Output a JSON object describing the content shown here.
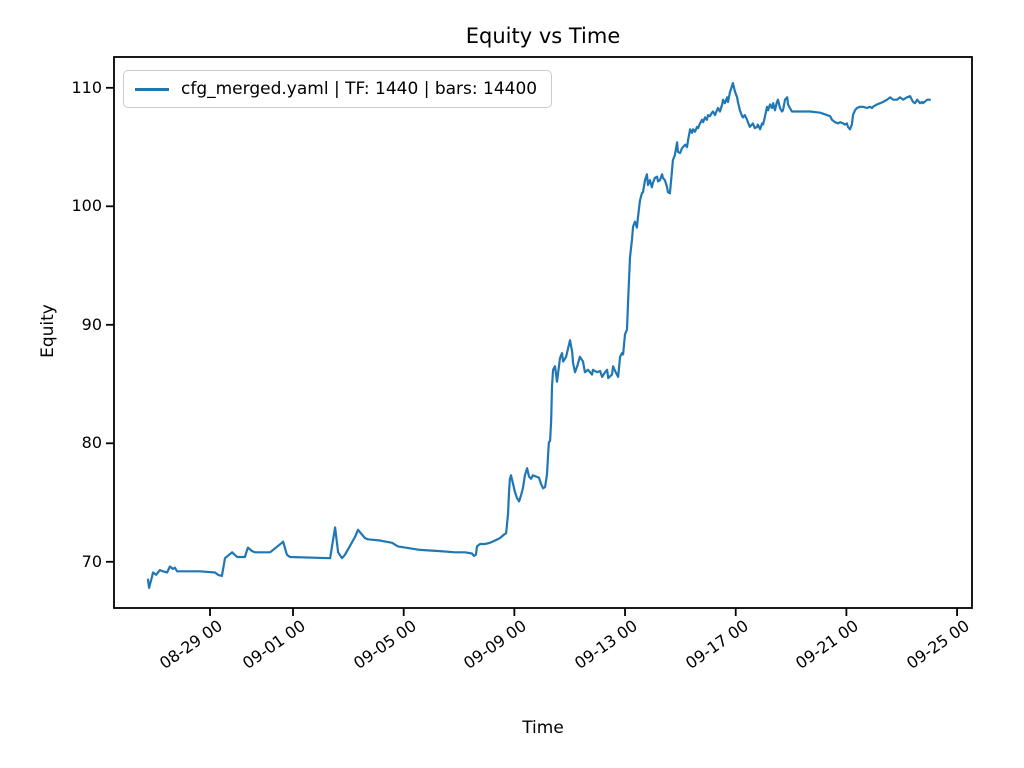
{
  "chart_data": {
    "type": "line",
    "title": "Equity vs Time",
    "xlabel": "Time",
    "ylabel": "Equity",
    "grid": false,
    "legend_position": "upper left",
    "line_color": "#1f77b4",
    "axis_color": "#000000",
    "x_domain": [
      -0.47,
      30.54
    ],
    "y_domain": [
      66.1,
      112.6
    ],
    "x_tick_rotation": 35,
    "x_ticks": [
      {
        "t": 3,
        "label": "08-29 00"
      },
      {
        "t": 6,
        "label": "09-01 00"
      },
      {
        "t": 10,
        "label": "09-05 00"
      },
      {
        "t": 14,
        "label": "09-09 00"
      },
      {
        "t": 18,
        "label": "09-13 00"
      },
      {
        "t": 22,
        "label": "09-17 00"
      },
      {
        "t": 26,
        "label": "09-21 00"
      },
      {
        "t": 30,
        "label": "09-25 00"
      }
    ],
    "y_ticks": [
      70,
      80,
      90,
      100,
      110
    ],
    "series": [
      {
        "name": "cfg_merged.yaml | TF: 1440 | bars: 14400",
        "points": [
          [
            0.76,
            68.5
          ],
          [
            0.8,
            67.8
          ],
          [
            0.9,
            68.7
          ],
          [
            0.94,
            69.1
          ],
          [
            1.05,
            68.9
          ],
          [
            1.19,
            69.3
          ],
          [
            1.3,
            69.2
          ],
          [
            1.45,
            69.1
          ],
          [
            1.55,
            69.6
          ],
          [
            1.66,
            69.4
          ],
          [
            1.73,
            69.5
          ],
          [
            1.81,
            69.2
          ],
          [
            1.92,
            69.2
          ],
          [
            2.64,
            69.2
          ],
          [
            3.18,
            69.1
          ],
          [
            3.29,
            68.9
          ],
          [
            3.43,
            68.8
          ],
          [
            3.54,
            70.3
          ],
          [
            3.8,
            70.8
          ],
          [
            3.98,
            70.4
          ],
          [
            4.26,
            70.4
          ],
          [
            4.34,
            71.0
          ],
          [
            4.37,
            71.2
          ],
          [
            4.52,
            70.9
          ],
          [
            4.63,
            70.8
          ],
          [
            5.17,
            70.8
          ],
          [
            5.6,
            71.6
          ],
          [
            5.64,
            71.7
          ],
          [
            5.78,
            70.6
          ],
          [
            5.89,
            70.4
          ],
          [
            7.34,
            70.3
          ],
          [
            7.52,
            72.9
          ],
          [
            7.63,
            70.8
          ],
          [
            7.77,
            70.3
          ],
          [
            7.88,
            70.6
          ],
          [
            8.24,
            72.1
          ],
          [
            8.35,
            72.7
          ],
          [
            8.49,
            72.3
          ],
          [
            8.6,
            72.0
          ],
          [
            8.71,
            71.9
          ],
          [
            9.14,
            71.8
          ],
          [
            9.58,
            71.6
          ],
          [
            9.79,
            71.3
          ],
          [
            10.05,
            71.2
          ],
          [
            10.59,
            71.0
          ],
          [
            11.31,
            70.9
          ],
          [
            11.86,
            70.8
          ],
          [
            12.22,
            70.8
          ],
          [
            12.47,
            70.7
          ],
          [
            12.54,
            70.5
          ],
          [
            12.61,
            70.6
          ],
          [
            12.65,
            71.3
          ],
          [
            12.76,
            71.5
          ],
          [
            12.94,
            71.5
          ],
          [
            13.12,
            71.6
          ],
          [
            13.3,
            71.8
          ],
          [
            13.48,
            72.0
          ],
          [
            13.63,
            72.3
          ],
          [
            13.7,
            72.4
          ],
          [
            13.77,
            74.0
          ],
          [
            13.81,
            76.0
          ],
          [
            13.84,
            77.0
          ],
          [
            13.88,
            77.3
          ],
          [
            13.95,
            76.6
          ],
          [
            14.02,
            75.9
          ],
          [
            14.09,
            75.4
          ],
          [
            14.17,
            75.1
          ],
          [
            14.24,
            75.6
          ],
          [
            14.31,
            76.2
          ],
          [
            14.38,
            77.3
          ],
          [
            14.46,
            77.9
          ],
          [
            14.53,
            77.2
          ],
          [
            14.6,
            77.0
          ],
          [
            14.67,
            77.3
          ],
          [
            14.78,
            77.2
          ],
          [
            14.89,
            77.1
          ],
          [
            14.96,
            76.6
          ],
          [
            15.04,
            76.2
          ],
          [
            15.11,
            76.3
          ],
          [
            15.18,
            77.4
          ],
          [
            15.22,
            79.0
          ],
          [
            15.25,
            80.1
          ],
          [
            15.29,
            80.2
          ],
          [
            15.33,
            82.0
          ],
          [
            15.36,
            84.8
          ],
          [
            15.4,
            86.2
          ],
          [
            15.47,
            86.5
          ],
          [
            15.54,
            85.2
          ],
          [
            15.65,
            87.2
          ],
          [
            15.72,
            87.6
          ],
          [
            15.76,
            86.9
          ],
          [
            15.87,
            87.3
          ],
          [
            16.01,
            88.7
          ],
          [
            16.09,
            87.7
          ],
          [
            16.12,
            86.8
          ],
          [
            16.19,
            86.0
          ],
          [
            16.27,
            86.5
          ],
          [
            16.37,
            87.3
          ],
          [
            16.45,
            87.0
          ],
          [
            16.48,
            86.9
          ],
          [
            16.55,
            86.0
          ],
          [
            16.66,
            86.2
          ],
          [
            16.81,
            85.8
          ],
          [
            16.84,
            86.2
          ],
          [
            16.99,
            86.0
          ],
          [
            17.1,
            86.1
          ],
          [
            17.17,
            85.6
          ],
          [
            17.28,
            86.0
          ],
          [
            17.35,
            86.2
          ],
          [
            17.39,
            85.5
          ],
          [
            17.53,
            85.8
          ],
          [
            17.57,
            86.5
          ],
          [
            17.64,
            86.1
          ],
          [
            17.75,
            85.6
          ],
          [
            17.82,
            87.3
          ],
          [
            17.89,
            87.6
          ],
          [
            17.93,
            87.5
          ],
          [
            18.0,
            89.2
          ],
          [
            18.07,
            89.6
          ],
          [
            18.11,
            92.0
          ],
          [
            18.18,
            95.7
          ],
          [
            18.25,
            97.2
          ],
          [
            18.29,
            98.3
          ],
          [
            18.36,
            98.7
          ],
          [
            18.43,
            98.2
          ],
          [
            18.47,
            99.1
          ],
          [
            18.54,
            100.5
          ],
          [
            18.61,
            101.1
          ],
          [
            18.65,
            101.2
          ],
          [
            18.72,
            102.2
          ],
          [
            18.79,
            102.7
          ],
          [
            18.83,
            101.8
          ],
          [
            18.9,
            102.2
          ],
          [
            18.97,
            101.6
          ],
          [
            19.01,
            102.0
          ],
          [
            19.08,
            102.4
          ],
          [
            19.16,
            102.5
          ],
          [
            19.19,
            102.1
          ],
          [
            19.26,
            102.2
          ],
          [
            19.34,
            102.7
          ],
          [
            19.37,
            102.4
          ],
          [
            19.44,
            102.2
          ],
          [
            19.52,
            101.6
          ],
          [
            19.55,
            101.2
          ],
          [
            19.62,
            101.1
          ],
          [
            19.7,
            103.1
          ],
          [
            19.73,
            103.9
          ],
          [
            19.8,
            104.3
          ],
          [
            19.88,
            105.4
          ],
          [
            19.91,
            104.6
          ],
          [
            19.99,
            104.5
          ],
          [
            20.06,
            104.9
          ],
          [
            20.17,
            105.2
          ],
          [
            20.24,
            105.0
          ],
          [
            20.28,
            105.6
          ],
          [
            20.35,
            106.5
          ],
          [
            20.42,
            106.2
          ],
          [
            20.46,
            106.5
          ],
          [
            20.53,
            106.3
          ],
          [
            20.6,
            106.7
          ],
          [
            20.64,
            106.6
          ],
          [
            20.71,
            107.0
          ],
          [
            20.78,
            107.3
          ],
          [
            20.82,
            107.1
          ],
          [
            20.89,
            107.5
          ],
          [
            20.96,
            107.3
          ],
          [
            21.0,
            107.7
          ],
          [
            21.07,
            107.6
          ],
          [
            21.14,
            107.9
          ],
          [
            21.18,
            108.0
          ],
          [
            21.25,
            107.7
          ],
          [
            21.32,
            108.1
          ],
          [
            21.36,
            108.3
          ],
          [
            21.43,
            108.0
          ],
          [
            21.51,
            108.6
          ],
          [
            21.54,
            109.0
          ],
          [
            21.61,
            108.7
          ],
          [
            21.69,
            109.2
          ],
          [
            21.72,
            108.8
          ],
          [
            21.79,
            109.6
          ],
          [
            21.86,
            110.1
          ],
          [
            21.9,
            110.4
          ],
          [
            21.97,
            109.7
          ],
          [
            22.05,
            109.2
          ],
          [
            22.08,
            108.8
          ],
          [
            22.15,
            108.1
          ],
          [
            22.23,
            107.6
          ],
          [
            22.26,
            107.5
          ],
          [
            22.33,
            107.7
          ],
          [
            22.41,
            107.3
          ],
          [
            22.44,
            107.1
          ],
          [
            22.51,
            106.7
          ],
          [
            22.59,
            106.9
          ],
          [
            22.62,
            107.0
          ],
          [
            22.69,
            106.6
          ],
          [
            22.77,
            106.7
          ],
          [
            22.8,
            106.9
          ],
          [
            22.88,
            106.5
          ],
          [
            22.95,
            107.0
          ],
          [
            22.99,
            106.9
          ],
          [
            23.06,
            107.6
          ],
          [
            23.13,
            108.4
          ],
          [
            23.17,
            108.1
          ],
          [
            23.24,
            108.6
          ],
          [
            23.31,
            108.3
          ],
          [
            23.35,
            108.7
          ],
          [
            23.42,
            108.1
          ],
          [
            23.49,
            108.8
          ],
          [
            23.53,
            109.0
          ],
          [
            23.6,
            108.3
          ],
          [
            23.67,
            108.0
          ],
          [
            23.71,
            108.1
          ],
          [
            23.78,
            109.0
          ],
          [
            23.86,
            109.2
          ],
          [
            23.89,
            108.6
          ],
          [
            23.96,
            108.3
          ],
          [
            24.03,
            108.0
          ],
          [
            24.32,
            108.0
          ],
          [
            24.69,
            108.0
          ],
          [
            25.05,
            107.9
          ],
          [
            25.3,
            107.7
          ],
          [
            25.41,
            107.6
          ],
          [
            25.48,
            107.3
          ],
          [
            25.59,
            107.1
          ],
          [
            25.7,
            107.0
          ],
          [
            25.77,
            107.1
          ],
          [
            25.88,
            107.0
          ],
          [
            25.95,
            106.9
          ],
          [
            26.02,
            107.0
          ],
          [
            26.06,
            106.7
          ],
          [
            26.13,
            106.5
          ],
          [
            26.2,
            106.9
          ],
          [
            26.24,
            107.7
          ],
          [
            26.31,
            108.1
          ],
          [
            26.38,
            108.3
          ],
          [
            26.49,
            108.4
          ],
          [
            26.6,
            108.4
          ],
          [
            26.75,
            108.3
          ],
          [
            26.85,
            108.4
          ],
          [
            26.93,
            108.3
          ],
          [
            26.96,
            108.4
          ],
          [
            27.11,
            108.6
          ],
          [
            27.22,
            108.7
          ],
          [
            27.32,
            108.8
          ],
          [
            27.47,
            109.0
          ],
          [
            27.58,
            109.2
          ],
          [
            27.69,
            109.0
          ],
          [
            27.83,
            109.0
          ],
          [
            27.94,
            109.2
          ],
          [
            28.05,
            109.0
          ],
          [
            28.19,
            109.2
          ],
          [
            28.3,
            109.3
          ],
          [
            28.41,
            108.8
          ],
          [
            28.48,
            108.7
          ],
          [
            28.56,
            109.0
          ],
          [
            28.66,
            108.7
          ],
          [
            28.74,
            108.8
          ],
          [
            28.77,
            108.7
          ],
          [
            28.92,
            109.0
          ],
          [
            29.02,
            109.0
          ]
        ]
      }
    ]
  }
}
